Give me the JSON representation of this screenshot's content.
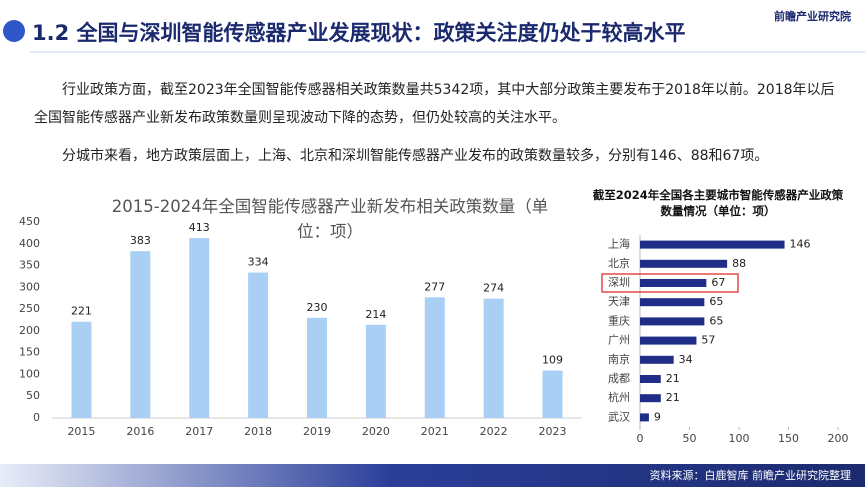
{
  "header": {
    "title": "1.2 全国与深圳智能传感器产业发展现状：政策关注度仍处于较高水平",
    "logo": "前瞻产业研究院"
  },
  "paragraphs": [
    "行业政策方面，截至2023年全国智能传感器相关政策数量共5342项，其中大部分政策主要发布于2018年以前。2018年以后全国智能传感器产业新发布政策数量则呈现波动下降的态势，但仍处较高的关注水平。",
    "分城市来看，地方政策层面上，上海、北京和深圳智能传感器产业发布的政策数量较多，分别有146、88和67项。"
  ],
  "chart_data": [
    {
      "type": "bar",
      "title": "2015-2024年全国智能传感器产业新发布相关政策数量（单位：项）",
      "categories": [
        "2015",
        "2016",
        "2017",
        "2018",
        "2019",
        "2020",
        "2021",
        "2022",
        "2023"
      ],
      "values": [
        221,
        383,
        413,
        334,
        230,
        214,
        277,
        274,
        109
      ],
      "color": "#a9cff5",
      "ylim": [
        0,
        450
      ],
      "yticks": [
        0,
        50,
        100,
        150,
        200,
        250,
        300,
        350,
        400,
        450
      ],
      "grid": false
    },
    {
      "type": "barh",
      "title": "截至2024年全国各主要城市智能传感器产业政策数量情况（单位：项）",
      "categories": [
        "上海",
        "北京",
        "深圳",
        "天津",
        "重庆",
        "广州",
        "南京",
        "成都",
        "杭州",
        "武汉"
      ],
      "values": [
        146,
        88,
        67,
        65,
        65,
        57,
        34,
        21,
        21,
        9
      ],
      "color": "#1f2d86",
      "xlim": [
        0,
        200
      ],
      "xticks": [
        0,
        50,
        100,
        150,
        200
      ],
      "highlight_index": 2,
      "highlight_color": "#e0302e"
    }
  ],
  "source": "资料来源：白鹿智库 前瞻产业研究院整理"
}
